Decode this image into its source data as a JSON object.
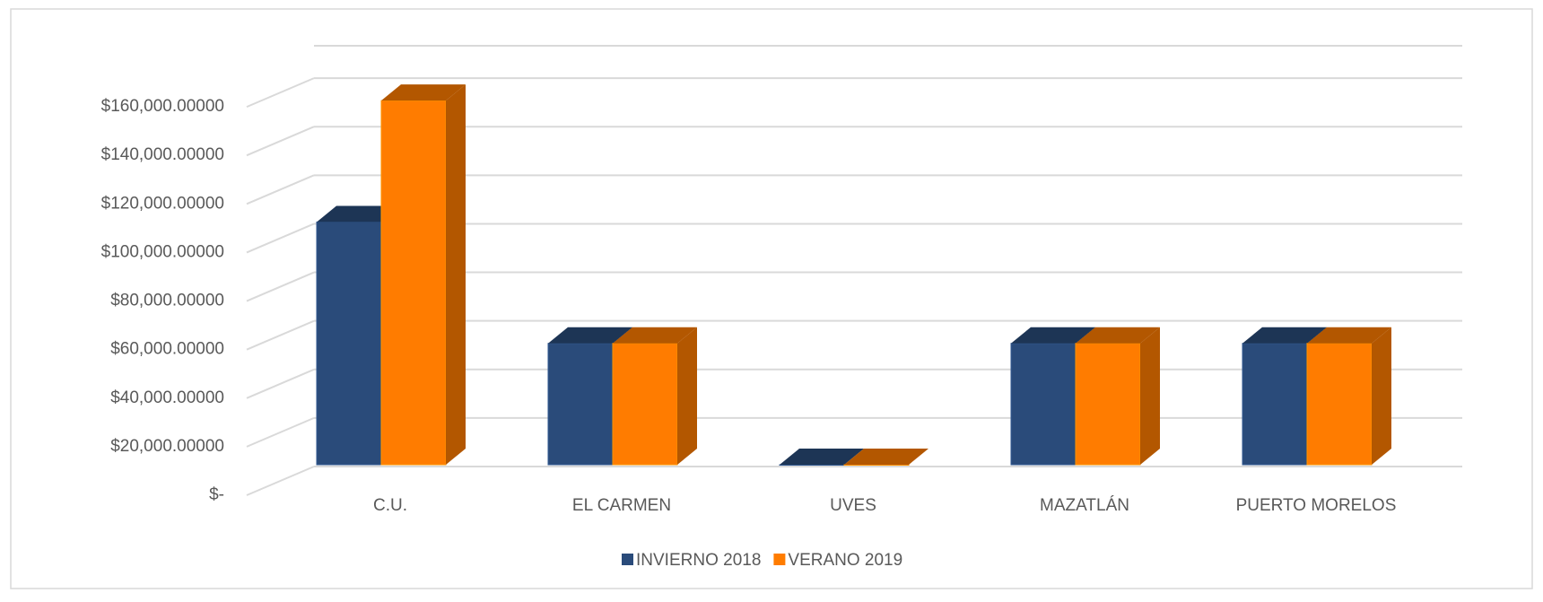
{
  "chart_data": {
    "type": "bar3d",
    "categories": [
      "C.U.",
      "EL CARMEN",
      "UVES",
      "MAZATLÁN",
      "PUERTO MORELOS"
    ],
    "series": [
      {
        "name": "INVIERNO 2018",
        "color": "#2a4b7a",
        "values": [
          100000,
          50000,
          0,
          50000,
          50000
        ]
      },
      {
        "name": "VERANO 2019",
        "color": "#ff7c00",
        "values": [
          150000,
          50000,
          0,
          50000,
          50000
        ]
      }
    ],
    "ylim": [
      0,
      180000
    ],
    "yticks": [
      {
        "value": 0,
        "label": "$-"
      },
      {
        "value": 20000,
        "label": "$20,000.00000"
      },
      {
        "value": 40000,
        "label": "$40,000.00000"
      },
      {
        "value": 60000,
        "label": "$60,000.00000"
      },
      {
        "value": 80000,
        "label": "$80,000.00000"
      },
      {
        "value": 100000,
        "label": "$100,000.00000"
      },
      {
        "value": 120000,
        "label": "$120,000.00000"
      },
      {
        "value": 140000,
        "label": "$140,000.00000"
      },
      {
        "value": 160000,
        "label": "$160,000.00000"
      }
    ],
    "grid": true,
    "legend": "bottom"
  }
}
